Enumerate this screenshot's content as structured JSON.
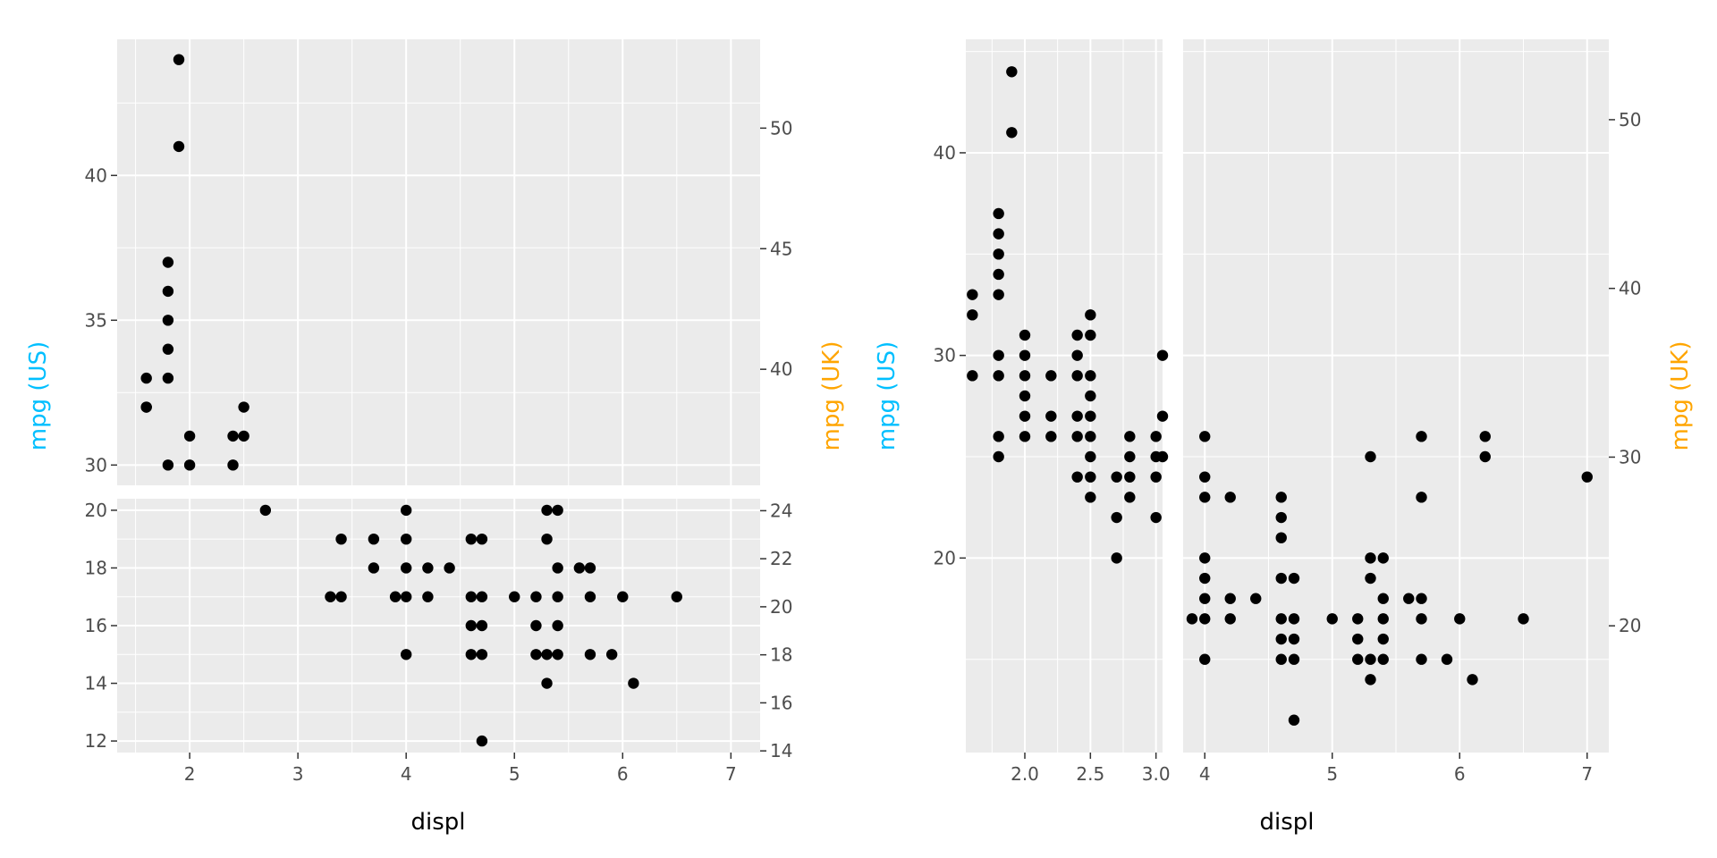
{
  "chart_data": [
    {
      "type": "scatter",
      "panel": "left",
      "xlabel": "displ",
      "ylabel_left": "mpg (US)",
      "ylabel_right": "mpg (UK)",
      "ylabel_left_color": "#00BFFF",
      "ylabel_right_color": "#FFA500",
      "xlim": [
        1.33,
        7.27
      ],
      "x_ticks": [
        "2",
        "3",
        "4",
        "5",
        "6",
        "7"
      ],
      "grid": true,
      "subpanels": [
        {
          "name": "upper",
          "ylim": [
            29.3,
            44.7
          ],
          "y_ticks_left": [
            "30",
            "35",
            "40"
          ],
          "y_ticks_right": [
            "40",
            "45",
            "50"
          ],
          "points": [
            [
              1.9,
              44
            ],
            [
              1.9,
              41
            ],
            [
              1.8,
              37
            ],
            [
              1.8,
              36
            ],
            [
              1.8,
              35
            ],
            [
              1.8,
              34
            ],
            [
              1.8,
              33
            ],
            [
              1.6,
              33
            ],
            [
              1.6,
              32
            ],
            [
              1.6,
              32
            ],
            [
              2.5,
              32
            ],
            [
              2.0,
              31
            ],
            [
              2.4,
              31
            ],
            [
              2.5,
              31
            ],
            [
              1.8,
              30
            ],
            [
              2.0,
              30
            ],
            [
              2.4,
              30
            ]
          ]
        },
        {
          "name": "lower",
          "ylim": [
            11.6,
            20.4
          ],
          "y_ticks_left": [
            "12",
            "14",
            "16",
            "18",
            "20"
          ],
          "y_ticks_right": [
            "14",
            "16",
            "18",
            "20",
            "22",
            "24"
          ],
          "points": [
            [
              2.7,
              20
            ],
            [
              4.0,
              20
            ],
            [
              5.3,
              20
            ],
            [
              5.4,
              20
            ],
            [
              3.4,
              19
            ],
            [
              3.7,
              19
            ],
            [
              4.0,
              19
            ],
            [
              4.6,
              19
            ],
            [
              4.7,
              19
            ],
            [
              5.3,
              19
            ],
            [
              3.7,
              18
            ],
            [
              4.0,
              18
            ],
            [
              4.2,
              18
            ],
            [
              4.4,
              18
            ],
            [
              5.4,
              18
            ],
            [
              5.6,
              18
            ],
            [
              5.7,
              18
            ],
            [
              3.3,
              17
            ],
            [
              3.4,
              17
            ],
            [
              3.9,
              17
            ],
            [
              4.0,
              17
            ],
            [
              4.2,
              17
            ],
            [
              4.6,
              17
            ],
            [
              4.7,
              17
            ],
            [
              5.0,
              17
            ],
            [
              5.2,
              17
            ],
            [
              5.4,
              17
            ],
            [
              5.7,
              17
            ],
            [
              6.0,
              17
            ],
            [
              6.5,
              17
            ],
            [
              4.6,
              16
            ],
            [
              4.7,
              16
            ],
            [
              5.2,
              16
            ],
            [
              5.4,
              16
            ],
            [
              4.0,
              15
            ],
            [
              4.6,
              15
            ],
            [
              4.7,
              15
            ],
            [
              5.2,
              15
            ],
            [
              5.3,
              15
            ],
            [
              5.4,
              15
            ],
            [
              5.7,
              15
            ],
            [
              5.9,
              15
            ],
            [
              5.3,
              14
            ],
            [
              6.1,
              14
            ],
            [
              4.7,
              12
            ]
          ]
        }
      ]
    },
    {
      "type": "scatter",
      "panel": "right",
      "xlabel": "displ",
      "ylabel_left": "mpg (US)",
      "ylabel_right": "mpg (UK)",
      "ylabel_left_color": "#00BFFF",
      "ylabel_right_color": "#FFA500",
      "ylim": [
        10.4,
        45.6
      ],
      "y_ticks_left": [
        "20",
        "30",
        "40"
      ],
      "y_ticks_right": [
        "20",
        "30",
        "40",
        "50"
      ],
      "grid": true,
      "subpanels": [
        {
          "name": "left-x-range",
          "xlim": [
            1.55,
            3.05
          ],
          "x_ticks": [
            "2.0",
            "2.5",
            "3.0"
          ],
          "points": [
            [
              1.9,
              44
            ],
            [
              1.9,
              41
            ],
            [
              1.8,
              37
            ],
            [
              1.8,
              36
            ],
            [
              1.8,
              35
            ],
            [
              1.8,
              34
            ],
            [
              1.6,
              33
            ],
            [
              1.8,
              33
            ],
            [
              1.6,
              32
            ],
            [
              2.5,
              32
            ],
            [
              2.0,
              31
            ],
            [
              2.4,
              31
            ],
            [
              2.5,
              31
            ],
            [
              1.8,
              30
            ],
            [
              2.0,
              30
            ],
            [
              2.4,
              30
            ],
            [
              3.05,
              30
            ],
            [
              1.6,
              29
            ],
            [
              1.8,
              29
            ],
            [
              2.0,
              29
            ],
            [
              2.2,
              29
            ],
            [
              2.4,
              29
            ],
            [
              2.5,
              29
            ],
            [
              2.0,
              28
            ],
            [
              2.5,
              28
            ],
            [
              2.0,
              27
            ],
            [
              2.2,
              27
            ],
            [
              2.4,
              27
            ],
            [
              2.5,
              27
            ],
            [
              3.05,
              27
            ],
            [
              1.8,
              26
            ],
            [
              2.0,
              26
            ],
            [
              2.2,
              26
            ],
            [
              2.4,
              26
            ],
            [
              2.5,
              26
            ],
            [
              2.8,
              26
            ],
            [
              3.0,
              26
            ],
            [
              1.8,
              25
            ],
            [
              2.5,
              25
            ],
            [
              2.8,
              25
            ],
            [
              3.0,
              25
            ],
            [
              3.05,
              25
            ],
            [
              2.4,
              24
            ],
            [
              2.5,
              24
            ],
            [
              2.7,
              24
            ],
            [
              2.8,
              24
            ],
            [
              3.0,
              24
            ],
            [
              2.5,
              23
            ],
            [
              2.8,
              23
            ],
            [
              2.7,
              22
            ],
            [
              3.0,
              22
            ],
            [
              2.7,
              20
            ]
          ]
        },
        {
          "name": "right-x-range",
          "xlim": [
            3.83,
            7.17
          ],
          "x_ticks": [
            "4",
            "5",
            "6",
            "7"
          ],
          "points": [
            [
              4.0,
              26
            ],
            [
              5.7,
              26
            ],
            [
              6.2,
              26
            ],
            [
              5.3,
              25
            ],
            [
              6.2,
              25
            ],
            [
              4.0,
              24
            ],
            [
              7.0,
              24
            ],
            [
              4.0,
              23
            ],
            [
              4.2,
              23
            ],
            [
              4.6,
              23
            ],
            [
              5.7,
              23
            ],
            [
              4.6,
              22
            ],
            [
              4.6,
              21
            ],
            [
              4.0,
              20
            ],
            [
              5.3,
              20
            ],
            [
              5.4,
              20
            ],
            [
              4.0,
              19
            ],
            [
              4.6,
              19
            ],
            [
              4.7,
              19
            ],
            [
              5.3,
              19
            ],
            [
              4.0,
              18
            ],
            [
              4.2,
              18
            ],
            [
              4.4,
              18
            ],
            [
              5.4,
              18
            ],
            [
              5.6,
              18
            ],
            [
              5.7,
              18
            ],
            [
              3.9,
              17
            ],
            [
              4.0,
              17
            ],
            [
              4.2,
              17
            ],
            [
              4.6,
              17
            ],
            [
              4.7,
              17
            ],
            [
              5.0,
              17
            ],
            [
              5.2,
              17
            ],
            [
              5.4,
              17
            ],
            [
              5.7,
              17
            ],
            [
              6.0,
              17
            ],
            [
              6.5,
              17
            ],
            [
              4.6,
              16
            ],
            [
              4.7,
              16
            ],
            [
              5.2,
              16
            ],
            [
              5.4,
              16
            ],
            [
              4.0,
              15
            ],
            [
              4.6,
              15
            ],
            [
              4.7,
              15
            ],
            [
              5.2,
              15
            ],
            [
              5.3,
              15
            ],
            [
              5.4,
              15
            ],
            [
              5.7,
              15
            ],
            [
              5.9,
              15
            ],
            [
              5.3,
              14
            ],
            [
              6.1,
              14
            ],
            [
              4.7,
              12
            ]
          ]
        }
      ]
    }
  ]
}
